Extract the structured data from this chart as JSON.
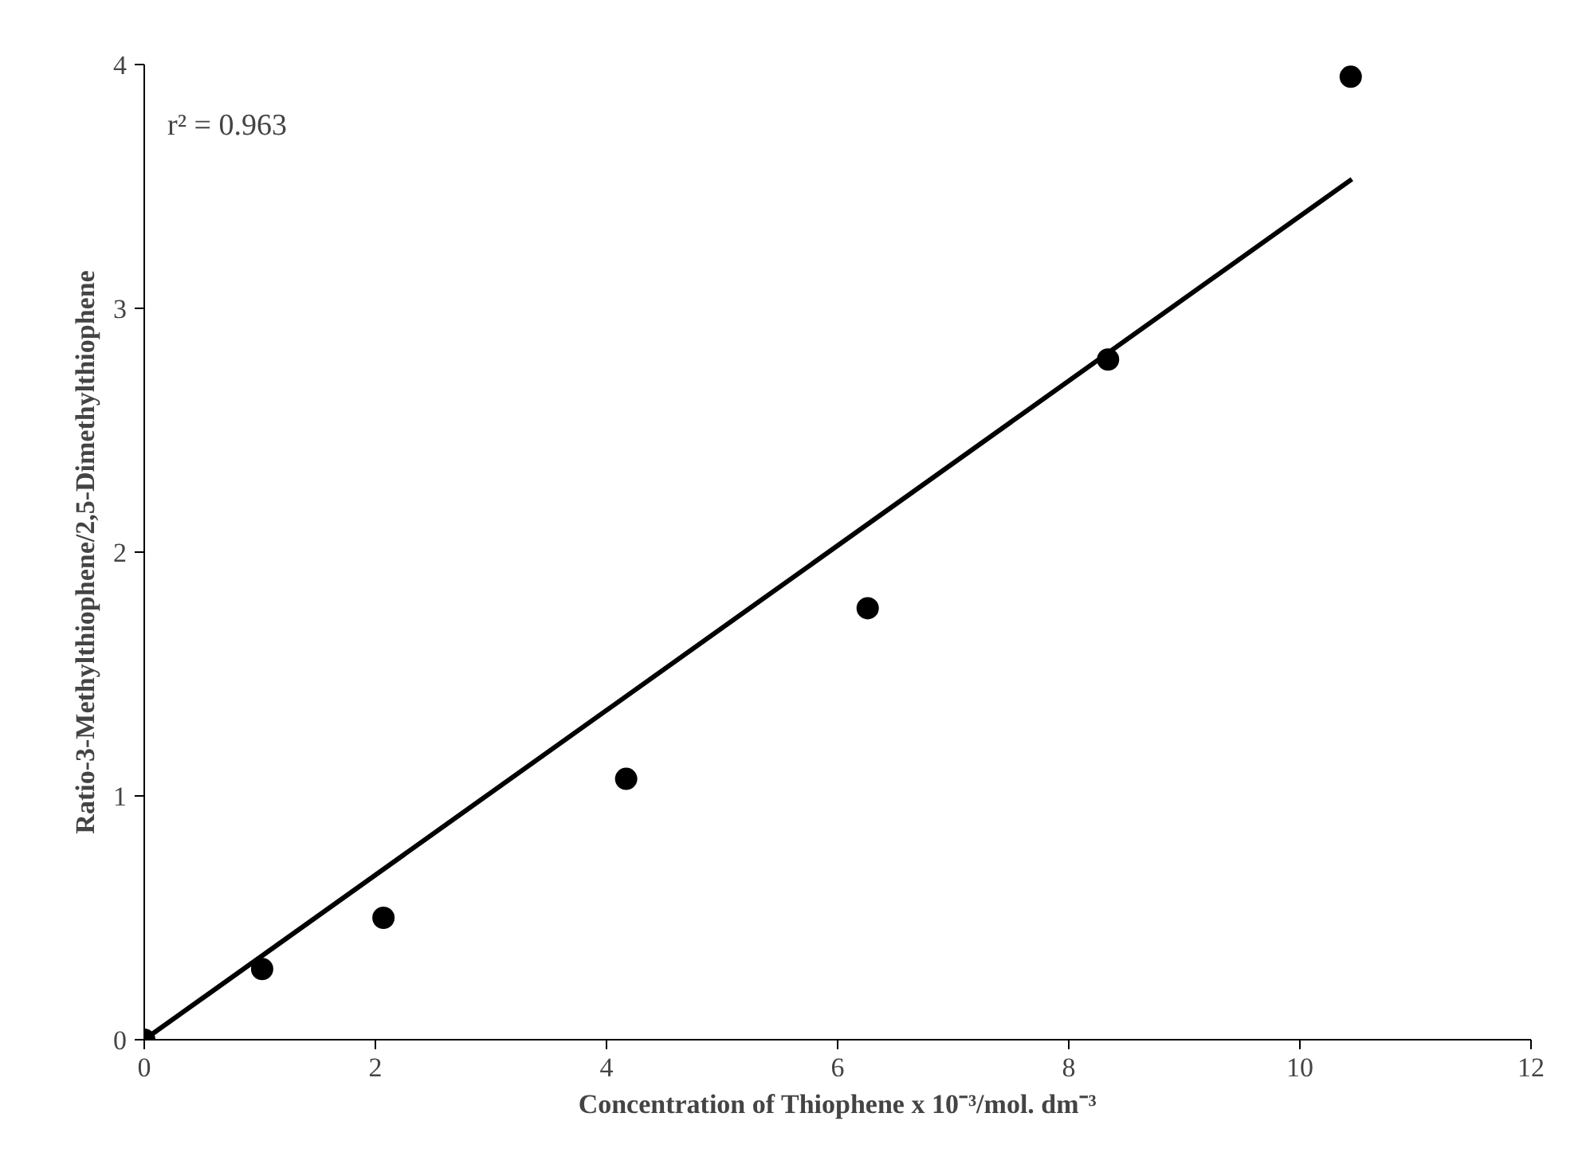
{
  "chart_data": {
    "type": "scatter",
    "xlabel": "Concentration of Thiophene x 10⁻³/mol. dm⁻³",
    "ylabel": "Ratio-3-Methylthiophene/2,5-Dimethylthiophene",
    "x": [
      0,
      1.02,
      2.07,
      4.17,
      6.26,
      8.34,
      10.44
    ],
    "series": [
      {
        "color": "#000000",
        "marker": "circle",
        "values": [
          0,
          0.29,
          0.5,
          1.07,
          1.77,
          2.79,
          3.95
        ]
      },
      {
        "type": "line",
        "color": "#000000",
        "marker": "none",
        "x": [
          0,
          10.45
        ],
        "values": [
          0,
          3.53
        ]
      }
    ],
    "xlim": [
      0,
      12
    ],
    "ylim": [
      0,
      4
    ],
    "xticks": [
      0,
      2,
      4,
      6,
      8,
      10,
      12
    ],
    "yticks": [
      0,
      1,
      2,
      3,
      4
    ],
    "grid": false,
    "annotations": [
      "r² = 0.963"
    ]
  }
}
